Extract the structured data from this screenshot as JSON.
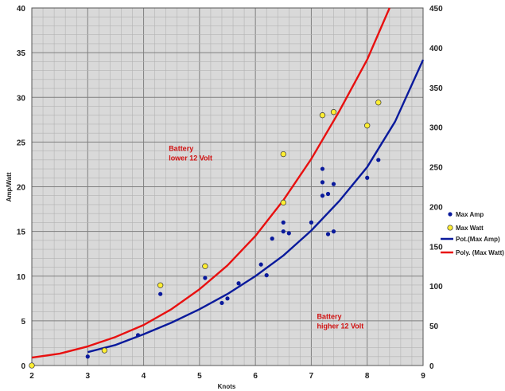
{
  "chart_data": {
    "type": "scatter",
    "title": "",
    "xlabel": "Knots",
    "ylabel": "Amp/Watt",
    "xlim": [
      2,
      9
    ],
    "ylim": [
      0,
      40
    ],
    "y2lim": [
      0,
      450
    ],
    "x_ticks": [
      "2",
      "3",
      "4",
      "5",
      "6",
      "7",
      "8",
      "9"
    ],
    "y_ticks": [
      "0",
      "5",
      "10",
      "15",
      "20",
      "25",
      "30",
      "35",
      "40"
    ],
    "y2_ticks": [
      "0",
      "50",
      "100",
      "150",
      "200",
      "250",
      "300",
      "350",
      "400",
      "450"
    ],
    "grid": true,
    "legend_position": "right",
    "series": [
      {
        "name": "Max Amp",
        "axis": "left",
        "color": "#0a1a9c",
        "marker": "dot",
        "points": [
          [
            3.0,
            1.0
          ],
          [
            3.9,
            3.4
          ],
          [
            4.3,
            8.0
          ],
          [
            5.1,
            9.8
          ],
          [
            5.4,
            7.0
          ],
          [
            5.5,
            7.5
          ],
          [
            5.7,
            9.2
          ],
          [
            6.1,
            11.3
          ],
          [
            6.2,
            10.1
          ],
          [
            6.3,
            14.2
          ],
          [
            6.5,
            15.0
          ],
          [
            6.5,
            16.0
          ],
          [
            6.6,
            14.8
          ],
          [
            7.0,
            16.0
          ],
          [
            7.2,
            22.0
          ],
          [
            7.2,
            20.5
          ],
          [
            7.2,
            19.0
          ],
          [
            7.3,
            19.2
          ],
          [
            7.3,
            14.7
          ],
          [
            7.4,
            20.3
          ],
          [
            7.4,
            15.0
          ],
          [
            8.0,
            21.0
          ],
          [
            8.2,
            23.0
          ]
        ]
      },
      {
        "name": "Max Watt",
        "axis": "right",
        "color": "#ffee33",
        "marker": "circle",
        "points": [
          [
            2.0,
            0
          ],
          [
            3.3,
            19
          ],
          [
            4.3,
            101
          ],
          [
            5.1,
            125
          ],
          [
            6.5,
            266
          ],
          [
            6.5,
            205
          ],
          [
            7.2,
            315
          ],
          [
            7.4,
            319
          ],
          [
            8.0,
            302
          ],
          [
            8.2,
            331
          ]
        ]
      },
      {
        "name": "Pot.(Max Amp)",
        "axis": "left",
        "color": "#0a1a9c",
        "type": "trendline",
        "points": [
          [
            3.0,
            1.5
          ],
          [
            3.5,
            2.3
          ],
          [
            4.0,
            3.5
          ],
          [
            4.5,
            4.8
          ],
          [
            5.0,
            6.3
          ],
          [
            5.5,
            8.0
          ],
          [
            6.0,
            10.0
          ],
          [
            6.5,
            12.3
          ],
          [
            7.0,
            15.1
          ],
          [
            7.5,
            18.4
          ],
          [
            8.0,
            22.2
          ],
          [
            8.5,
            27.3
          ],
          [
            9.0,
            34.2
          ]
        ]
      },
      {
        "name": "Poly. (Max Watt)",
        "axis": "right",
        "color": "#e81010",
        "type": "trendline",
        "points": [
          [
            2.0,
            10
          ],
          [
            2.5,
            15
          ],
          [
            3.0,
            24
          ],
          [
            3.5,
            36
          ],
          [
            4.0,
            51
          ],
          [
            4.5,
            71
          ],
          [
            5.0,
            96
          ],
          [
            5.5,
            126
          ],
          [
            6.0,
            163
          ],
          [
            6.5,
            208
          ],
          [
            7.0,
            260
          ],
          [
            7.5,
            320
          ],
          [
            8.0,
            385
          ],
          [
            8.4,
            450
          ]
        ]
      }
    ],
    "annotations": [
      {
        "lines": [
          "Battery",
          "lower 12 Volt"
        ],
        "x": 4.45,
        "y": 24.0
      },
      {
        "lines": [
          "Battery",
          "higher 12 Volt"
        ],
        "x": 7.1,
        "y": 5.2
      }
    ],
    "colors": {
      "plot_background": "#d9d9d9",
      "grid_minor": "#b3b3b3",
      "grid_major": "#7f7f7f",
      "annotation": "#d01010"
    }
  }
}
